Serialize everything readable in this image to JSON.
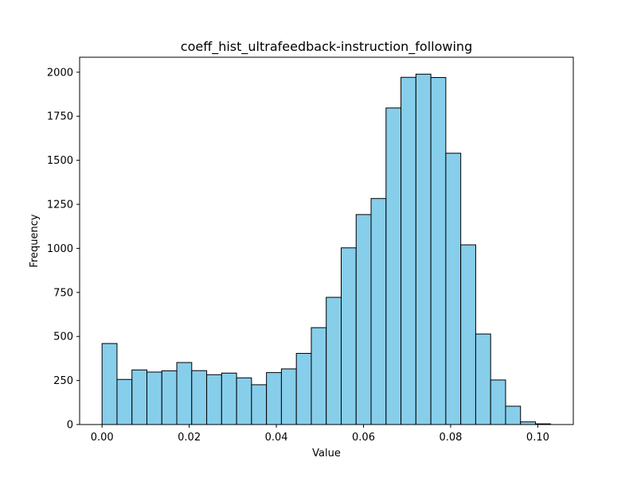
{
  "chart_data": {
    "type": "bar",
    "title": "coeff_hist_ultrafeedback-instruction_following",
    "xlabel": "Value",
    "ylabel": "Frequency",
    "xlim": [
      -0.00515,
      0.10815
    ],
    "ylim": [
      0,
      2085
    ],
    "bar_color": "#87ceeb",
    "edge_color": "#000000",
    "grid": false,
    "bin_start": 0.0,
    "bin_width": 0.00343,
    "values": [
      460,
      256,
      310,
      298,
      305,
      352,
      306,
      283,
      292,
      265,
      226,
      295,
      316,
      404,
      550,
      722,
      1003,
      1192,
      1283,
      1797,
      1971,
      1989,
      1970,
      1540,
      1020,
      514,
      253,
      104,
      15,
      4
    ],
    "x_ticks": [
      {
        "value": 0.0,
        "label": "0.00"
      },
      {
        "value": 0.02,
        "label": "0.02"
      },
      {
        "value": 0.04,
        "label": "0.04"
      },
      {
        "value": 0.06,
        "label": "0.06"
      },
      {
        "value": 0.08,
        "label": "0.08"
      },
      {
        "value": 0.1,
        "label": "0.10"
      }
    ],
    "y_ticks": [
      {
        "value": 0,
        "label": "0"
      },
      {
        "value": 250,
        "label": "250"
      },
      {
        "value": 500,
        "label": "500"
      },
      {
        "value": 750,
        "label": "750"
      },
      {
        "value": 1000,
        "label": "1000"
      },
      {
        "value": 1250,
        "label": "1250"
      },
      {
        "value": 1500,
        "label": "1500"
      },
      {
        "value": 1750,
        "label": "1750"
      },
      {
        "value": 2000,
        "label": "2000"
      }
    ]
  }
}
